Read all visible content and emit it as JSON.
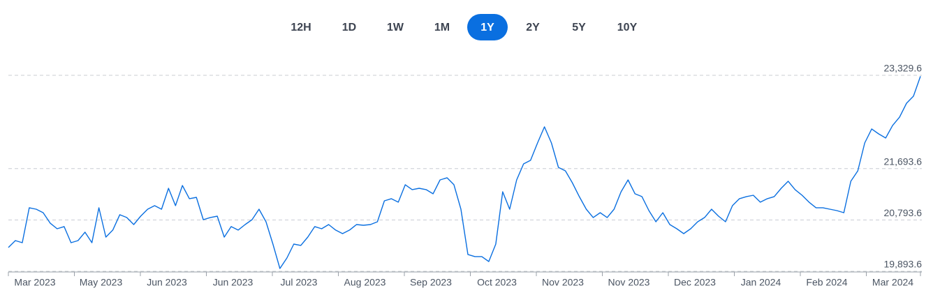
{
  "range_buttons": [
    "12H",
    "1D",
    "1W",
    "1M",
    "1Y",
    "2Y",
    "5Y",
    "10Y"
  ],
  "selected_range": "1Y",
  "chart_data": {
    "type": "line",
    "color": "#0a6fe0",
    "grid": true,
    "xtick_labels": [
      "Mar 2023",
      "May 2023",
      "Jun 2023",
      "Jun 2023",
      "Jul 2023",
      "Aug 2023",
      "Sep 2023",
      "Oct 2023",
      "Nov 2023",
      "Nov 2023",
      "Dec 2023",
      "Jan 2024",
      "Feb 2024",
      "Mar 2024"
    ],
    "ylim": [
      19893.6,
      23329.6
    ],
    "yticks": [
      {
        "value": 19893.6,
        "label": "19,893.6"
      },
      {
        "value": 20793.6,
        "label": "20,793.6"
      },
      {
        "value": 21693.6,
        "label": "21,693.6"
      },
      {
        "value": 23329.6,
        "label": "23,329.6"
      }
    ],
    "values": [
      20310,
      20432,
      20395,
      21007,
      20982,
      20921,
      20738,
      20640,
      20677,
      20395,
      20432,
      20579,
      20395,
      21007,
      20493,
      20616,
      20885,
      20836,
      20713,
      20860,
      20982,
      21044,
      20982,
      21349,
      21044,
      21398,
      21166,
      21190,
      20799,
      20836,
      20860,
      20493,
      20677,
      20616,
      20713,
      20799,
      20982,
      20762,
      20371,
      19943,
      20126,
      20371,
      20347,
      20493,
      20677,
      20640,
      20713,
      20616,
      20554,
      20616,
      20713,
      20701,
      20713,
      20762,
      21129,
      21166,
      21105,
      21411,
      21325,
      21349,
      21325,
      21252,
      21496,
      21533,
      21411,
      20982,
      20188,
      20151,
      20151,
      20065,
      20371,
      21288,
      20982,
      21496,
      21777,
      21839,
      22144,
      22426,
      22144,
      21716,
      21655,
      21447,
      21203,
      20982,
      20836,
      20921,
      20836,
      20982,
      21288,
      21496,
      21252,
      21203,
      20958,
      20762,
      20921,
      20713,
      20640,
      20554,
      20640,
      20762,
      20836,
      20982,
      20860,
      20762,
      21044,
      21166,
      21203,
      21227,
      21105,
      21166,
      21203,
      21349,
      21472,
      21325,
      21227,
      21105,
      21007,
      21007,
      20982,
      20958,
      20921,
      21472,
      21655,
      22144,
      22389,
      22303,
      22230,
      22450,
      22597,
      22841,
      22964,
      23312
    ]
  }
}
